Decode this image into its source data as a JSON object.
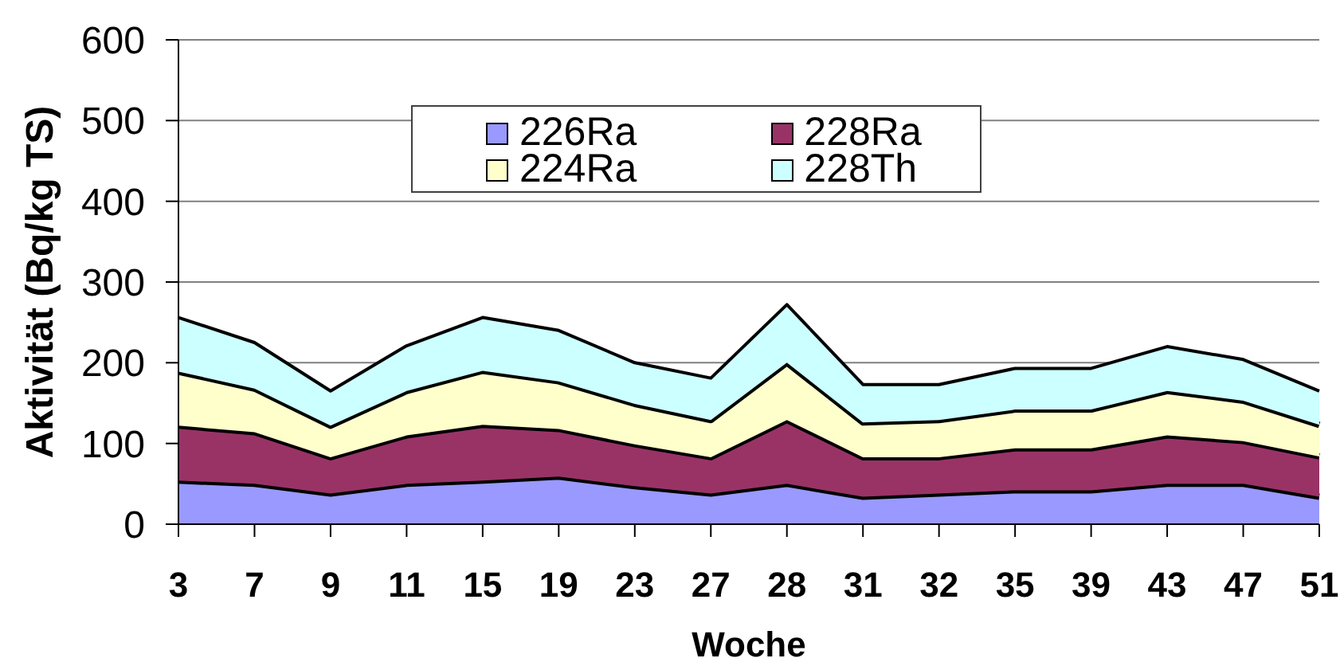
{
  "chart_data": {
    "type": "area",
    "stacked": true,
    "xlabel": "Woche",
    "ylabel": "Aktivität (Bq/kg TS)",
    "categories": [
      "3",
      "7",
      "9",
      "11",
      "15",
      "19",
      "23",
      "27",
      "28",
      "31",
      "32",
      "35",
      "39",
      "43",
      "47",
      "51"
    ],
    "series": [
      {
        "name": "226Ra",
        "color": "#9999ff",
        "values": [
          54,
          50,
          38,
          50,
          54,
          59,
          47,
          38,
          50,
          34,
          38,
          42,
          42,
          50,
          50,
          34
        ]
      },
      {
        "name": "228Ra",
        "color": "#993366",
        "values": [
          68,
          64,
          45,
          60,
          69,
          59,
          52,
          45,
          79,
          49,
          45,
          52,
          52,
          60,
          53,
          50
        ]
      },
      {
        "name": "224Ra",
        "color": "#ffffcc",
        "values": [
          67,
          54,
          39,
          55,
          67,
          59,
          50,
          46,
          71,
          43,
          46,
          48,
          48,
          55,
          50,
          39
        ]
      },
      {
        "name": "228Th",
        "color": "#ccffff",
        "values": [
          67,
          57,
          43,
          56,
          66,
          63,
          51,
          52,
          72,
          47,
          44,
          51,
          51,
          55,
          51,
          42
        ]
      }
    ],
    "ylim": [
      0,
      600
    ],
    "yticks": [
      0,
      100,
      200,
      300,
      400,
      500,
      600
    ],
    "grid": "y",
    "legend": "top left"
  }
}
